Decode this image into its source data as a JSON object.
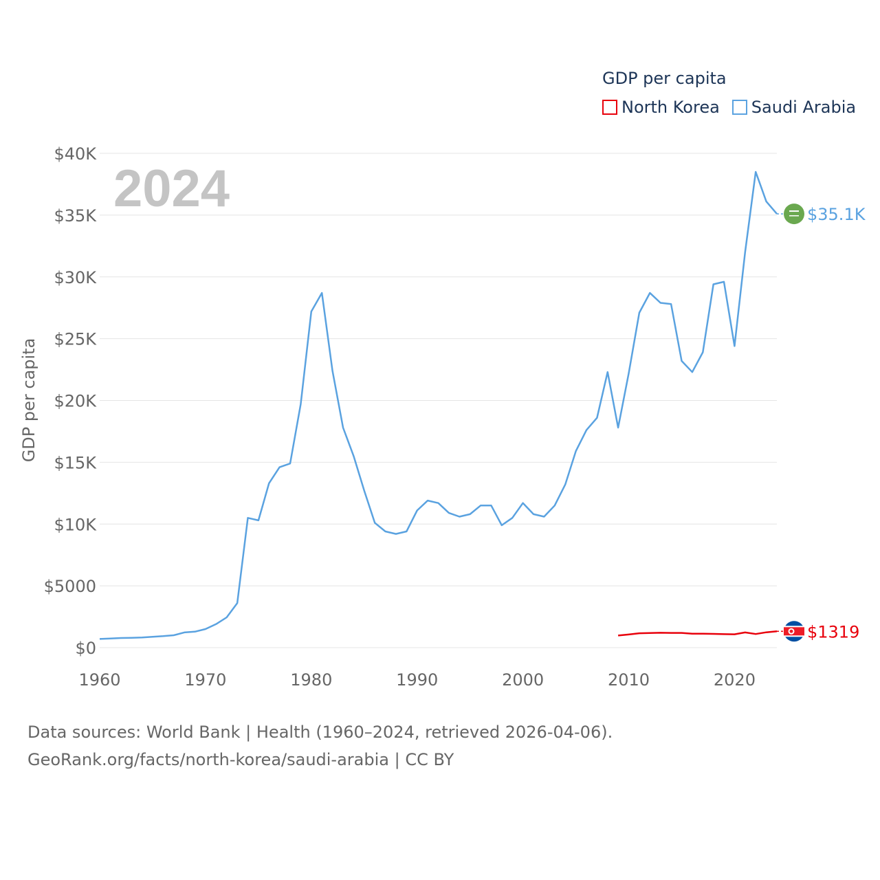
{
  "chart_data": {
    "type": "line",
    "title": "GDP per capita",
    "ylabel": "GDP per capita",
    "xlabel": "",
    "year_label": "2024",
    "xlim": [
      1960,
      2024
    ],
    "ylim": [
      0,
      40000
    ],
    "x_ticks": [
      1960,
      1970,
      1980,
      1990,
      2000,
      2010,
      2020
    ],
    "x_tick_labels": [
      "1960",
      "1970",
      "1980",
      "1990",
      "2000",
      "2010",
      "2020"
    ],
    "y_ticks": [
      0,
      5000,
      10000,
      15000,
      20000,
      25000,
      30000,
      35000,
      40000
    ],
    "y_tick_labels": [
      "$0",
      "$5000",
      "$10K",
      "$15K",
      "$20K",
      "$25K",
      "$30K",
      "$35K",
      "$40K"
    ],
    "grid": true,
    "legend_position": "top-right",
    "series": [
      {
        "name": "North Korea",
        "color": "#e8000b",
        "end_label": "$1319",
        "flag_icon": "north-korea-flag-icon",
        "x": [
          2009,
          2010,
          2011,
          2012,
          2013,
          2014,
          2015,
          2016,
          2017,
          2018,
          2019,
          2020,
          2021,
          2022,
          2023,
          2024
        ],
        "values": [
          980,
          1060,
          1160,
          1180,
          1200,
          1190,
          1190,
          1130,
          1130,
          1110,
          1090,
          1080,
          1230,
          1100,
          1240,
          1319
        ]
      },
      {
        "name": "Saudi Arabia",
        "color": "#5aa2e0",
        "end_label": "$35.1K",
        "flag_icon": "saudi-arabia-flag-icon",
        "x": [
          1960,
          1961,
          1962,
          1963,
          1964,
          1965,
          1966,
          1967,
          1968,
          1969,
          1970,
          1971,
          1972,
          1973,
          1974,
          1975,
          1976,
          1977,
          1978,
          1979,
          1980,
          1981,
          1982,
          1983,
          1984,
          1985,
          1986,
          1987,
          1988,
          1989,
          1990,
          1991,
          1992,
          1993,
          1994,
          1995,
          1996,
          1997,
          1998,
          1999,
          2000,
          2001,
          2002,
          2003,
          2004,
          2005,
          2006,
          2007,
          2008,
          2009,
          2010,
          2011,
          2012,
          2013,
          2014,
          2015,
          2016,
          2017,
          2018,
          2019,
          2020,
          2021,
          2022,
          2023,
          2024
        ],
        "values": [
          700,
          740,
          780,
          790,
          820,
          880,
          930,
          1000,
          1230,
          1290,
          1500,
          1900,
          2450,
          3600,
          10500,
          10300,
          13300,
          14600,
          14900,
          19700,
          27200,
          28700,
          22400,
          17800,
          15500,
          12700,
          10100,
          9400,
          9200,
          9400,
          11100,
          11900,
          11700,
          10900,
          10600,
          10800,
          11500,
          11500,
          9900,
          10500,
          11700,
          10800,
          10600,
          11500,
          13200,
          15900,
          17600,
          18600,
          22300,
          17800,
          22200,
          27100,
          28700,
          27900,
          27800,
          23200,
          22300,
          23900,
          29400,
          29600,
          24400,
          32000,
          38500,
          36100,
          35100
        ]
      }
    ]
  },
  "legend": {
    "title": "GDP per capita",
    "items": [
      {
        "label": "North Korea",
        "color": "#e8000b"
      },
      {
        "label": "Saudi Arabia",
        "color": "#5aa2e0"
      }
    ]
  },
  "footer": {
    "line1": "Data sources: World Bank | Health (1960–2024, retrieved 2026-04-06).",
    "line2": "GeoRank.org/facts/north-korea/saudi-arabia | CC BY"
  }
}
